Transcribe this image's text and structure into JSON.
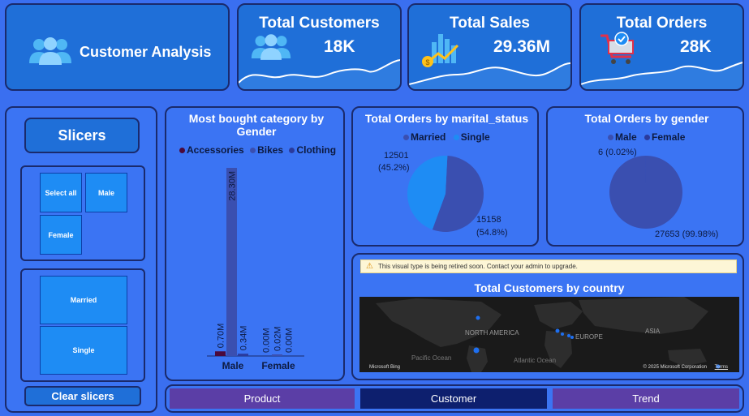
{
  "header": {
    "title": "Customer Analysis",
    "kpis": [
      {
        "title": "Total Customers",
        "value": "18K"
      },
      {
        "title": "Total Sales",
        "value": "29.36M"
      },
      {
        "title": "Total Orders",
        "value": "28K"
      }
    ]
  },
  "slicers": {
    "title": "Slicers",
    "gender_options": [
      "Select all",
      "Male",
      "Female"
    ],
    "marital_options": [
      "Married",
      "Single"
    ],
    "clear_label": "Clear slicers"
  },
  "category_chart": {
    "title": "Most bought category by Gender",
    "legend": [
      "Accessories",
      "Bikes",
      "Clothing"
    ],
    "categories": [
      "Male",
      "Female"
    ],
    "labels": {
      "male": [
        "0.70M",
        "28.30M",
        "0.34M"
      ],
      "female": [
        "0.00M",
        "0.02M",
        "0.00M"
      ]
    }
  },
  "marital_chart": {
    "title": "Total Orders by marital_status",
    "legend": [
      "Married",
      "Single"
    ],
    "label_single_value": "12501",
    "label_single_pct": "(45.2%)",
    "label_married_value": "15158",
    "label_married_pct": "(54.8%)"
  },
  "gender_chart": {
    "title": "Total Orders by gender",
    "legend": [
      "Male",
      "Female"
    ],
    "label_female": "6 (0.02%)",
    "label_male_value": "27653",
    "label_male_pct": "(99.98%)"
  },
  "map": {
    "warning": "This visual type is being retired soon. Contact your admin to upgrade.",
    "title": "Total Customers by country",
    "labels": {
      "north_america": "NORTH AMERICA",
      "europe": "EUROPE",
      "asia": "ASIA",
      "pacific": "Pacific Ocean",
      "atlantic": "Atlantic Ocean"
    },
    "attribution_left": "Microsoft Bing",
    "attribution_right": "© 2025 Microsoft Corporation",
    "terms": "Terms"
  },
  "nav": {
    "product": "Product",
    "customer": "Customer",
    "trend": "Trend"
  },
  "chart_data": [
    {
      "type": "bar",
      "title": "Most bought category by Gender",
      "categories": [
        "Male",
        "Female"
      ],
      "series": [
        {
          "name": "Accessories",
          "values": [
            0.7,
            0.0
          ]
        },
        {
          "name": "Bikes",
          "values": [
            28.3,
            0.02
          ]
        },
        {
          "name": "Clothing",
          "values": [
            0.34,
            0.0
          ]
        }
      ],
      "ylim": [
        0,
        28.3
      ]
    },
    {
      "type": "pie",
      "title": "Total Orders by marital_status",
      "categories": [
        "Married",
        "Single"
      ],
      "values": [
        15158,
        12501
      ]
    },
    {
      "type": "pie",
      "title": "Total Orders by gender",
      "categories": [
        "Male",
        "Female"
      ],
      "values": [
        27653,
        6
      ]
    }
  ],
  "colors": {
    "background": "#3a6ff0",
    "card": "#1f6fd8",
    "accessories": "#4b0a3c",
    "bikes": "#3a4fb0",
    "clothing": "#2a3a9c",
    "married": "#3a4fb0",
    "single": "#1e8cf4",
    "nav_active": "#0d1f6e",
    "nav_inactive": "#5b3ea6"
  },
  "icons": {
    "title": "people-icon",
    "customers": "people-icon",
    "sales": "bar-chart-coin-icon",
    "orders": "shopping-cart-icon"
  }
}
